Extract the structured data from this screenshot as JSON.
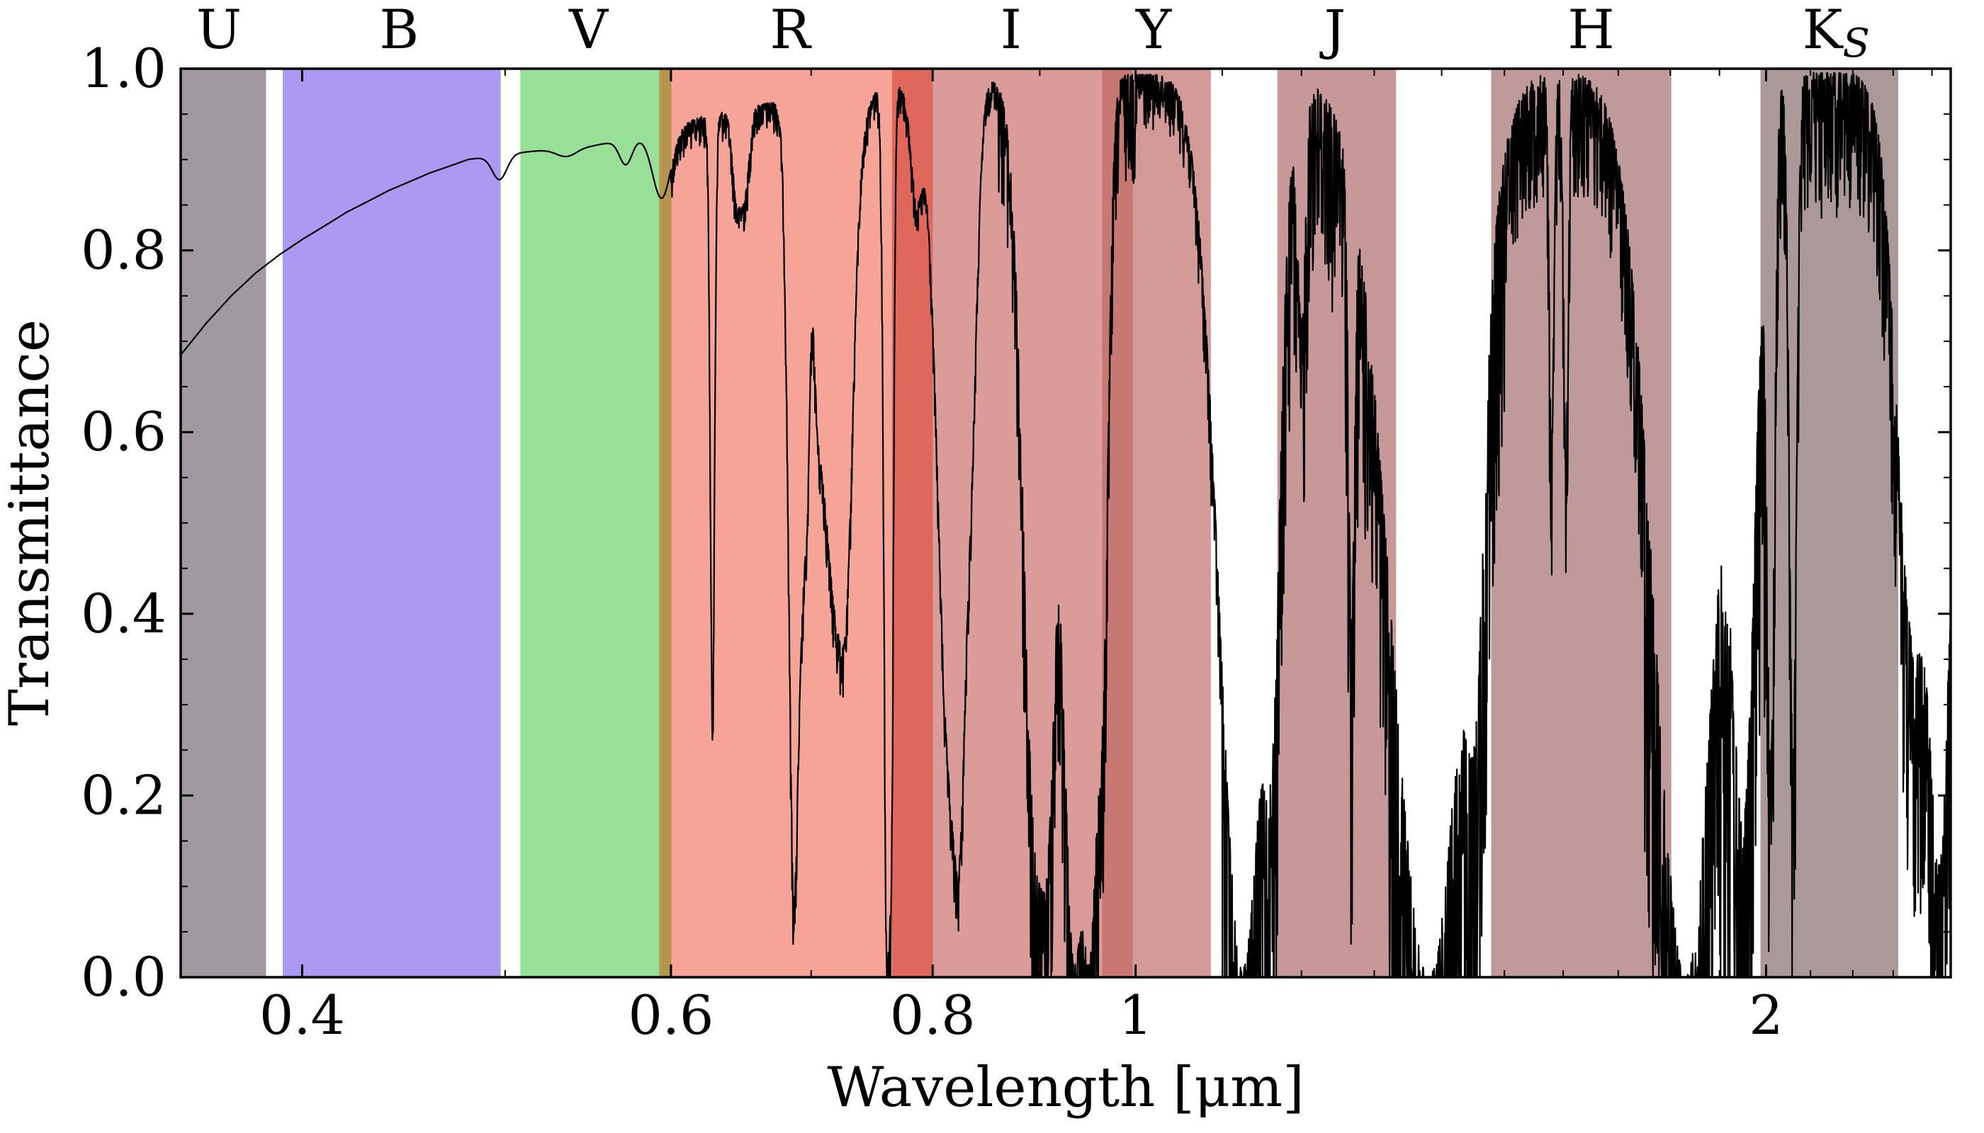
{
  "chart_data": {
    "type": "area",
    "title": "",
    "xlabel": "Wavelength [μm]",
    "ylabel": "Transmittance",
    "x_scale": "log",
    "xlim": [
      0.35,
      2.45
    ],
    "ylim": [
      0.0,
      1.0
    ],
    "grid": false,
    "x_ticks": [
      {
        "value": 0.4,
        "label": "0.4"
      },
      {
        "value": 0.6,
        "label": "0.6"
      },
      {
        "value": 0.8,
        "label": "0.8"
      },
      {
        "value": 1.0,
        "label": "1"
      },
      {
        "value": 2.0,
        "label": "2"
      }
    ],
    "y_ticks": [
      {
        "value": 0.0,
        "label": "0.0"
      },
      {
        "value": 0.2,
        "label": "0.2"
      },
      {
        "value": 0.4,
        "label": "0.4"
      },
      {
        "value": 0.6,
        "label": "0.6"
      },
      {
        "value": 0.8,
        "label": "0.8"
      },
      {
        "value": 1.0,
        "label": "1.0"
      }
    ],
    "bands": [
      {
        "name": "U",
        "sub": "",
        "label_x": 0.365,
        "range": [
          0.35,
          0.384
        ],
        "color": "#a09aa0"
      },
      {
        "name": "B",
        "sub": "",
        "label_x": 0.445,
        "range": [
          0.392,
          0.497
        ],
        "color": "#ac9af2"
      },
      {
        "name": "V",
        "sub": "",
        "label_x": 0.548,
        "range": [
          0.509,
          0.593
        ],
        "color": "#98e098"
      },
      {
        "name": "",
        "sub": "",
        "label_x": 0.595,
        "range": [
          0.593,
          0.601
        ],
        "color": "#b5944e"
      },
      {
        "name": "R",
        "sub": "",
        "label_x": 0.684,
        "range": [
          0.601,
          0.766
        ],
        "color": "#f6a498"
      },
      {
        "name": "",
        "sub": "",
        "label_x": 0.783,
        "range": [
          0.766,
          0.801
        ],
        "color": "#e0675c"
      },
      {
        "name": "I",
        "sub": "",
        "label_x": 0.872,
        "range": [
          0.801,
          0.965
        ],
        "color": "#db9b98"
      },
      {
        "name": "",
        "sub": "",
        "label_x": 0.98,
        "range": [
          0.965,
          0.998
        ],
        "color": "#c87872"
      },
      {
        "name": "Y",
        "sub": "",
        "label_x": 1.02,
        "range": [
          0.998,
          1.085
        ],
        "color": "#d49a98"
      },
      {
        "name": "J",
        "sub": "",
        "label_x": 1.245,
        "range": [
          1.17,
          1.33
        ],
        "color": "#c89898"
      },
      {
        "name": "H",
        "sub": "",
        "label_x": 1.65,
        "range": [
          1.48,
          1.8
        ],
        "color": "#c09a9a"
      },
      {
        "name": "K",
        "sub": "S",
        "label_x": 2.16,
        "range": [
          1.99,
          2.31
        ],
        "color": "#ab9898"
      }
    ],
    "series": [
      {
        "color": "#000000",
        "continuum": {
          "x": [
            0.35,
            0.36,
            0.37,
            0.38,
            0.39,
            0.4,
            0.42,
            0.44,
            0.46,
            0.48,
            0.5,
            0.52,
            0.55,
            0.58,
            0.6,
            0.62,
            0.65,
            0.7,
            0.75,
            0.8,
            0.85,
            0.9,
            0.95,
            1.0,
            1.05,
            1.1,
            1.2,
            1.3,
            1.5,
            1.7,
            2.0,
            2.2,
            2.45
          ],
          "y": [
            0.685,
            0.72,
            0.75,
            0.775,
            0.795,
            0.812,
            0.842,
            0.866,
            0.885,
            0.9,
            0.906,
            0.91,
            0.915,
            0.925,
            0.935,
            0.947,
            0.958,
            0.97,
            0.98,
            0.985,
            0.988,
            0.99,
            0.992,
            0.994,
            0.995,
            0.996,
            0.996,
            0.996,
            0.997,
            0.997,
            0.997,
            0.995,
            0.95
          ]
        },
        "absorption_features": [
          {
            "center": 0.497,
            "width": 0.004,
            "depth": 0.03
          },
          {
            "center": 0.535,
            "width": 0.006,
            "depth": 0.01
          },
          {
            "center": 0.571,
            "width": 0.004,
            "depth": 0.03
          },
          {
            "center": 0.594,
            "width": 0.006,
            "depth": 0.08
          },
          {
            "center": 0.628,
            "width": 0.0015,
            "depth": 0.68
          },
          {
            "center": 0.645,
            "width": 0.003,
            "depth": 0.1
          },
          {
            "center": 0.651,
            "width": 0.003,
            "depth": 0.09
          },
          {
            "center": 0.687,
            "width": 0.004,
            "depth": 0.9
          },
          {
            "center": 0.693,
            "width": 0.003,
            "depth": 0.38
          },
          {
            "center": 0.697,
            "width": 0.002,
            "depth": 0.3
          },
          {
            "center": 0.705,
            "width": 0.003,
            "depth": 0.15
          },
          {
            "center": 0.718,
            "width": 0.011,
            "depth": 0.55
          },
          {
            "center": 0.727,
            "width": 0.005,
            "depth": 0.35
          },
          {
            "center": 0.761,
            "width": 0.0025,
            "depth": 0.99
          },
          {
            "center": 0.764,
            "width": 0.002,
            "depth": 0.85
          },
          {
            "center": 0.786,
            "width": 0.005,
            "depth": 0.12
          },
          {
            "center": 0.814,
            "width": 0.01,
            "depth": 0.7
          },
          {
            "center": 0.823,
            "width": 0.006,
            "depth": 0.76
          },
          {
            "center": 0.834,
            "width": 0.006,
            "depth": 0.35
          },
          {
            "center": 0.896,
            "width": 0.012,
            "depth": 0.8
          },
          {
            "center": 0.906,
            "width": 0.008,
            "depth": 0.75
          },
          {
            "center": 0.935,
            "width": 0.012,
            "depth": 0.98
          },
          {
            "center": 0.95,
            "width": 0.01,
            "depth": 0.97
          },
          {
            "center": 0.964,
            "width": 0.006,
            "depth": 0.55
          },
          {
            "center": 1.125,
            "width": 0.028,
            "depth": 0.99
          },
          {
            "center": 1.16,
            "width": 0.01,
            "depth": 0.6
          },
          {
            "center": 1.2,
            "width": 0.005,
            "depth": 0.25
          },
          {
            "center": 1.268,
            "width": 0.004,
            "depth": 0.55
          },
          {
            "center": 1.38,
            "width": 0.055,
            "depth": 1.0
          },
          {
            "center": 1.45,
            "width": 0.014,
            "depth": 0.55
          },
          {
            "center": 1.58,
            "width": 0.004,
            "depth": 0.4
          },
          {
            "center": 1.605,
            "width": 0.004,
            "depth": 0.4
          },
          {
            "center": 1.83,
            "width": 0.06,
            "depth": 1.0
          },
          {
            "center": 1.95,
            "width": 0.025,
            "depth": 0.8
          },
          {
            "center": 2.01,
            "width": 0.008,
            "depth": 0.75
          },
          {
            "center": 2.06,
            "width": 0.008,
            "depth": 0.75
          },
          {
            "center": 2.35,
            "width": 0.04,
            "depth": 0.6
          },
          {
            "center": 2.42,
            "width": 0.03,
            "depth": 0.85
          }
        ],
        "noisy_regions": [
          {
            "range": [
              0.6,
              0.86
            ],
            "amplitude": 0.08
          },
          {
            "range": [
              0.86,
              1.0
            ],
            "amplitude": 0.3
          },
          {
            "range": [
              1.0,
              1.1
            ],
            "amplitude": 0.15
          },
          {
            "range": [
              1.1,
              1.32
            ],
            "amplitude": 0.55
          },
          {
            "range": [
              1.32,
              1.5
            ],
            "amplitude": 0.7
          },
          {
            "range": [
              1.5,
              1.75
            ],
            "amplitude": 0.35
          },
          {
            "range": [
              1.75,
              2.0
            ],
            "amplitude": 0.7
          },
          {
            "range": [
              2.0,
              2.45
            ],
            "amplitude": 0.4
          }
        ]
      }
    ]
  }
}
